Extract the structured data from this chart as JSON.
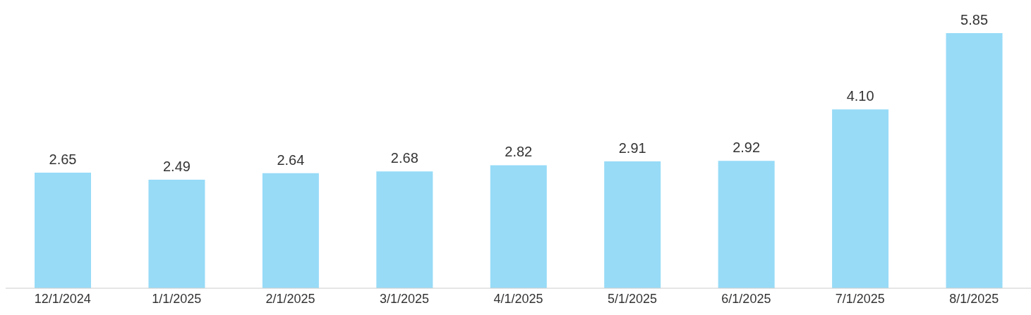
{
  "chart_data": {
    "type": "bar",
    "categories": [
      "12/1/2024",
      "1/1/2025",
      "2/1/2025",
      "3/1/2025",
      "4/1/2025",
      "5/1/2025",
      "6/1/2025",
      "7/1/2025",
      "8/1/2025"
    ],
    "values": [
      2.65,
      2.49,
      2.64,
      2.68,
      2.82,
      2.91,
      2.92,
      4.1,
      5.85
    ],
    "color": "#97dbf7",
    "value_labels": [
      "2.65",
      "2.49",
      "2.64",
      "2.68",
      "2.82",
      "2.91",
      "2.92",
      "4.10",
      "5.85"
    ],
    "grid": false,
    "legend": false
  }
}
